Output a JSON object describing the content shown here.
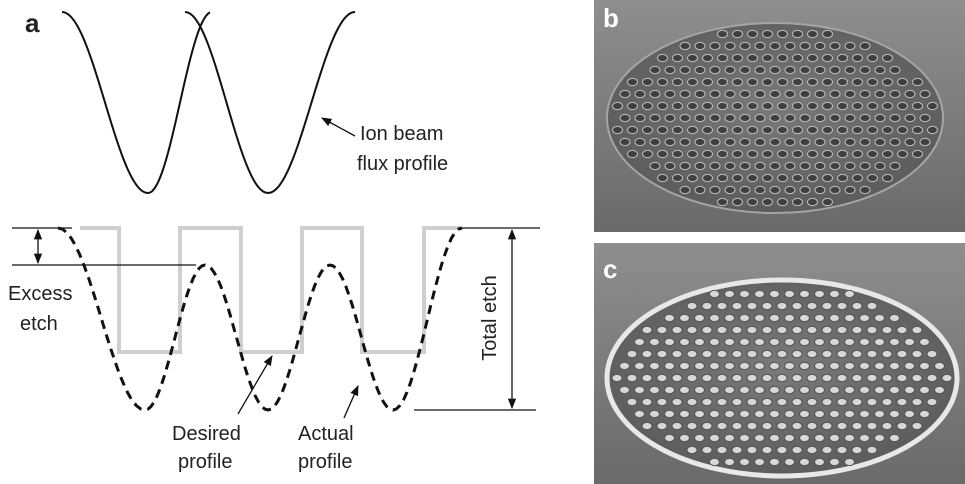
{
  "panels": [
    {
      "label": "a"
    },
    {
      "label": "b"
    },
    {
      "label": "c"
    }
  ],
  "annotations": {
    "ion_beam": [
      "Ion beam",
      "flux profile"
    ],
    "excess_etch": [
      "Excess",
      "etch"
    ],
    "desired_profile": [
      "Desired",
      "profile"
    ],
    "actual_profile": [
      "Actual",
      "profile"
    ],
    "total_etch": "Total etch"
  }
}
